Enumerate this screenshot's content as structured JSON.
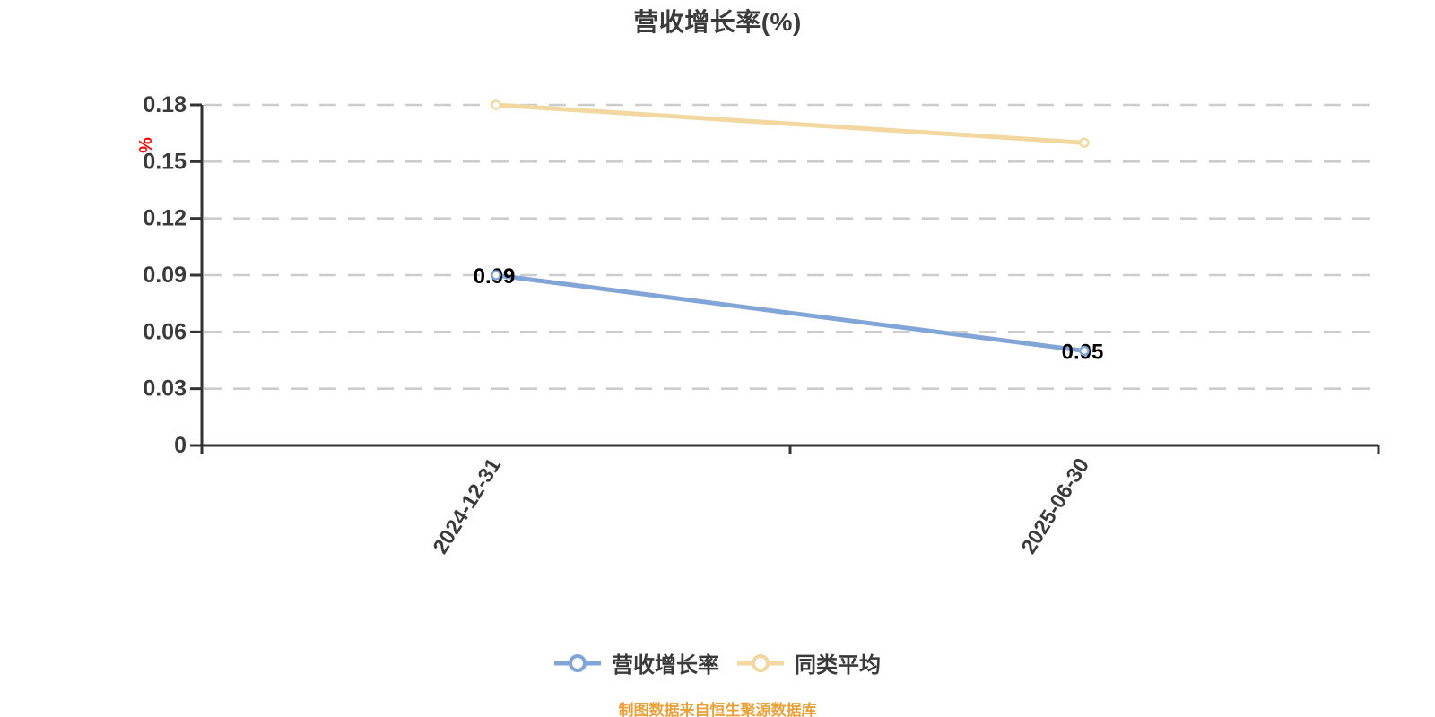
{
  "title": "营收增长率(%)",
  "y_axis_unit": "%",
  "footer": "制图数据来自恒生聚源数据库",
  "colors": {
    "axis": "#333333",
    "grid": "#cccccc",
    "tick_label": "#3a3a3a",
    "title": "#3b3b3b",
    "unit_label": "#ff0000",
    "footer": "#e9a23b",
    "data_label": "#000000"
  },
  "legend": [
    {
      "label": "营收增长率",
      "color": "#82a5d7"
    },
    {
      "label": "同类平均",
      "color": "#f2d8a0"
    }
  ],
  "chart_data": {
    "type": "line",
    "categories": [
      "2024-12-31",
      "2025-06-30"
    ],
    "series": [
      {
        "name": "营收增长率",
        "values": [
          0.09,
          0.05
        ],
        "color": "#82a5d7",
        "labels": [
          "0.09",
          "0.05"
        ]
      },
      {
        "name": "同类平均",
        "values": [
          0.18,
          0.16
        ],
        "color": "#f2d8a0",
        "labels": [
          null,
          null
        ]
      }
    ],
    "title": "营收增长率(%)",
    "xlabel": "",
    "ylabel": "%",
    "ylim": [
      0,
      0.18
    ],
    "yticks": [
      0,
      0.03,
      0.06,
      0.09,
      0.12,
      0.15,
      0.18
    ],
    "ytick_labels": [
      "0",
      "0.03",
      "0.06",
      "0.09",
      "0.12",
      "0.15",
      "0.18"
    ],
    "grid": "horizontal dashed",
    "legend_position": "bottom"
  }
}
